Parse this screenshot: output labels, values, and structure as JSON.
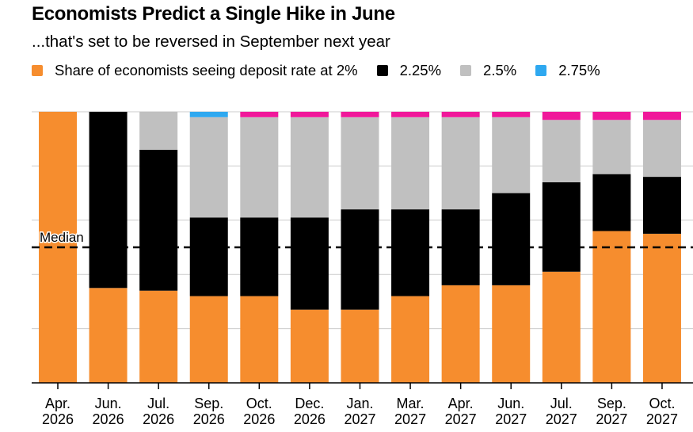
{
  "chart_data": {
    "type": "bar",
    "stacked": true,
    "title": "Economists Predict a Single Hike in June",
    "subtitle": "...that's set to be reversed in September next year",
    "xlabel": "",
    "ylabel": "",
    "ylim": [
      0,
      100
    ],
    "yticks": [
      0,
      20,
      40,
      60,
      80,
      100
    ],
    "grid": true,
    "legend_position": "top",
    "categories": [
      [
        "Apr.",
        "2026"
      ],
      [
        "Jun.",
        "2026"
      ],
      [
        "Jul.",
        "2026"
      ],
      [
        "Sep.",
        "2026"
      ],
      [
        "Oct.",
        "2026"
      ],
      [
        "Dec.",
        "2026"
      ],
      [
        "Jan.",
        "2027"
      ],
      [
        "Mar.",
        "2027"
      ],
      [
        "Apr.",
        "2027"
      ],
      [
        "Jun.",
        "2027"
      ],
      [
        "Jul.",
        "2027"
      ],
      [
        "Sep.",
        "2027"
      ],
      [
        "Oct.",
        "2027"
      ]
    ],
    "series": [
      {
        "name": "Share of economists seeing deposit rate at 2%",
        "color": "#F68D2E",
        "values": [
          100,
          35,
          34,
          32,
          32,
          27,
          27,
          32,
          36,
          36,
          41,
          56,
          55
        ]
      },
      {
        "name": "2.25%",
        "color": "#000000",
        "values": [
          0,
          65,
          52,
          29,
          29,
          34,
          37,
          32,
          28,
          34,
          33,
          21,
          21
        ]
      },
      {
        "name": "2.5%",
        "color": "#C0C0C0",
        "values": [
          0,
          0,
          14,
          37,
          37,
          37,
          34,
          34,
          34,
          28,
          23,
          20,
          21
        ]
      },
      {
        "name": "2.75%",
        "color": "#2EA8F0",
        "values": [
          0,
          0,
          0,
          2,
          0,
          0,
          0,
          0,
          0,
          0,
          0,
          0,
          0
        ]
      },
      {
        "name": "",
        "color": "#F0189A",
        "legend_clipped": true,
        "values": [
          0,
          0,
          0,
          0,
          2,
          2,
          2,
          2,
          2,
          2,
          3,
          3,
          3
        ]
      }
    ],
    "annotations": [
      {
        "type": "hline",
        "value": 50,
        "label": "Median",
        "style": "dashed"
      }
    ]
  }
}
